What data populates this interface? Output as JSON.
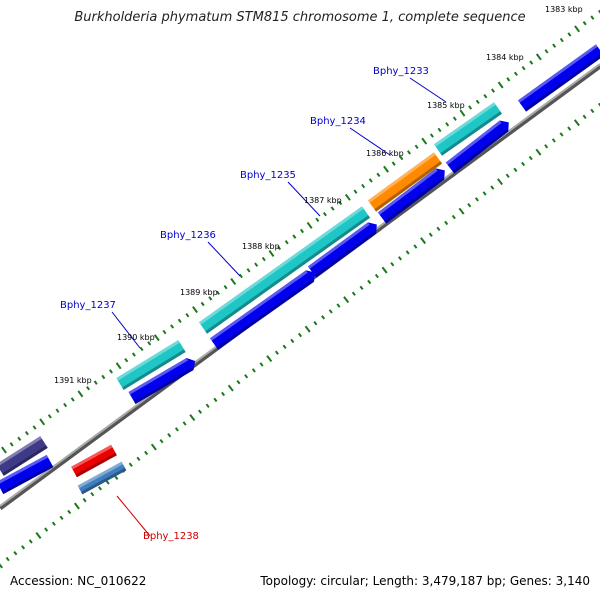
{
  "title": "Burkholderia phymatum STM815 chromosome 1, complete sequence",
  "footer": {
    "accession": "Accession: NC_010622",
    "summary": "Topology: circular; Length: 3,479,187 bp; Genes: 3,140"
  },
  "colors": {
    "backbone": "#808080",
    "tick": "#1a7a1a",
    "label_blue": "#0000cc",
    "label_red": "#cc0000",
    "cds_forward": "#1fc6c6",
    "cds_reverse": "#0000ee",
    "orange": "#ff8a00",
    "red": "#ee0000",
    "purple": "#3f3a88",
    "steelblue": "#3f7fbf"
  },
  "ticks": [
    "1383 kbp",
    "1384 kbp",
    "1385 kbp",
    "1386 kbp",
    "1387 kbp",
    "1388 kbp",
    "1389 kbp",
    "1390 kbp",
    "1391 kbp"
  ],
  "genes": [
    {
      "name": "Bphy_1233",
      "color": "label_blue"
    },
    {
      "name": "Bphy_1234",
      "color": "label_blue"
    },
    {
      "name": "Bphy_1235",
      "color": "label_blue"
    },
    {
      "name": "Bphy_1236",
      "color": "label_blue"
    },
    {
      "name": "Bphy_1237",
      "color": "label_blue"
    },
    {
      "name": "Bphy_1238",
      "color": "label_red"
    }
  ]
}
